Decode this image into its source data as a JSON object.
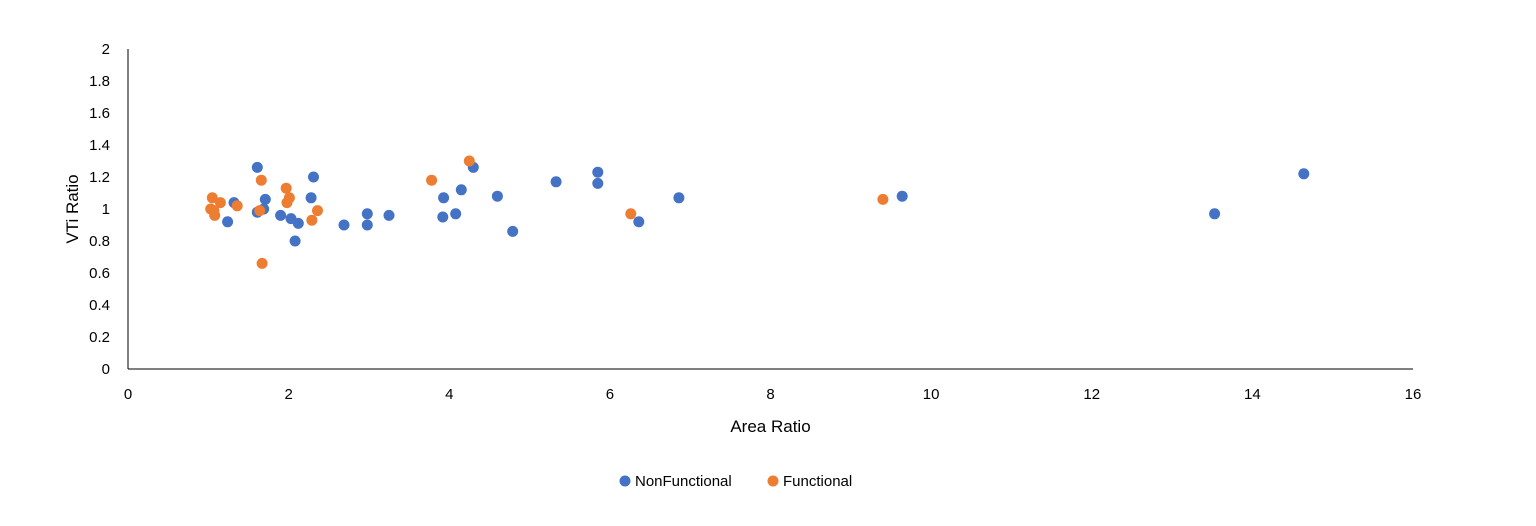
{
  "chart_data": {
    "type": "scatter",
    "title": "",
    "xlabel": "Area Ratio",
    "ylabel": "VTi Ratio",
    "xlim": [
      0,
      16
    ],
    "ylim": [
      0,
      2
    ],
    "xticks": [
      0,
      2,
      4,
      6,
      8,
      10,
      12,
      14,
      16
    ],
    "yticks": [
      0,
      0.2,
      0.4,
      0.6,
      0.8,
      1,
      1.2,
      1.4,
      1.6,
      1.8,
      2
    ],
    "xtick_labels": [
      "0",
      "2",
      "4",
      "6",
      "8",
      "10",
      "12",
      "14",
      "16"
    ],
    "ytick_labels": [
      "0",
      "0.2",
      "0.4",
      "0.6",
      "0.8",
      "1",
      "1.2",
      "1.4",
      "1.6",
      "1.8",
      "2"
    ],
    "grid": false,
    "legend_position": "bottom",
    "series": [
      {
        "name": "NonFunctional",
        "color": "#4472C4",
        "points": [
          [
            1.24,
            0.92
          ],
          [
            1.32,
            1.04
          ],
          [
            1.61,
            1.26
          ],
          [
            1.61,
            0.98
          ],
          [
            1.69,
            1.0
          ],
          [
            1.71,
            1.06
          ],
          [
            1.9,
            0.96
          ],
          [
            2.03,
            0.94
          ],
          [
            2.08,
            0.8
          ],
          [
            2.12,
            0.91
          ],
          [
            2.28,
            1.07
          ],
          [
            2.31,
            1.2
          ],
          [
            2.69,
            0.9
          ],
          [
            2.98,
            0.97
          ],
          [
            2.98,
            0.9
          ],
          [
            3.25,
            0.96
          ],
          [
            3.92,
            0.95
          ],
          [
            3.93,
            1.07
          ],
          [
            4.08,
            0.97
          ],
          [
            4.15,
            1.12
          ],
          [
            4.3,
            1.26
          ],
          [
            4.6,
            1.08
          ],
          [
            4.79,
            0.86
          ],
          [
            5.33,
            1.17
          ],
          [
            5.85,
            1.23
          ],
          [
            5.85,
            1.16
          ],
          [
            6.36,
            0.92
          ],
          [
            6.86,
            1.07
          ],
          [
            9.64,
            1.08
          ],
          [
            13.53,
            0.97
          ],
          [
            14.64,
            1.22
          ]
        ]
      },
      {
        "name": "Functional",
        "color": "#ED7D31",
        "points": [
          [
            1.03,
            1.0
          ],
          [
            1.05,
            1.07
          ],
          [
            1.07,
            0.99
          ],
          [
            1.08,
            0.96
          ],
          [
            1.15,
            1.04
          ],
          [
            1.36,
            1.02
          ],
          [
            1.64,
            0.99
          ],
          [
            1.66,
            1.18
          ],
          [
            1.67,
            0.66
          ],
          [
            1.97,
            1.13
          ],
          [
            1.98,
            1.04
          ],
          [
            2.01,
            1.07
          ],
          [
            2.29,
            0.93
          ],
          [
            2.36,
            0.99
          ],
          [
            3.78,
            1.18
          ],
          [
            4.25,
            1.3
          ],
          [
            6.26,
            0.97
          ],
          [
            9.4,
            1.06
          ]
        ]
      }
    ]
  }
}
